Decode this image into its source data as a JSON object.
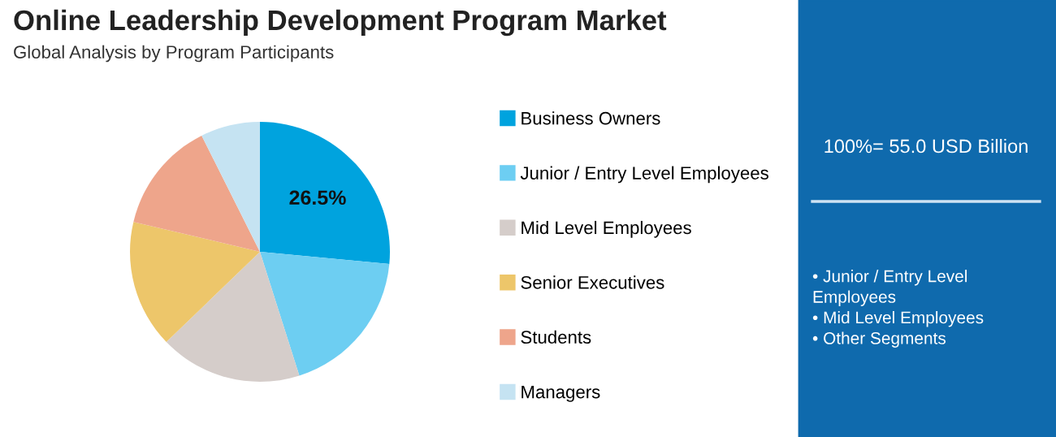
{
  "chart_data": {
    "type": "pie",
    "title": "Online Leadership Development Program Market",
    "subtitle": "Global Analysis by Program Participants",
    "categories": [
      "Business Owners",
      "Junior / Entry Level Employees",
      "Mid Level Employees",
      "Senior Executives",
      "Students",
      "Managers"
    ],
    "values": [
      26.5,
      18.6,
      17.7,
      15.9,
      13.9,
      7.4
    ],
    "colors": [
      "#00a3de",
      "#6dcef2",
      "#d5cdca",
      "#edc66a",
      "#eea58b",
      "#c5e3f2"
    ],
    "value_labels": [
      "26.5%",
      null,
      null,
      null,
      null,
      null
    ],
    "legend": "right",
    "annotations": [
      "100%= 55.0 USD Billion",
      "• Junior / Entry Level\nEmployees\n• Mid Level Employees\n• Other Segments"
    ]
  }
}
